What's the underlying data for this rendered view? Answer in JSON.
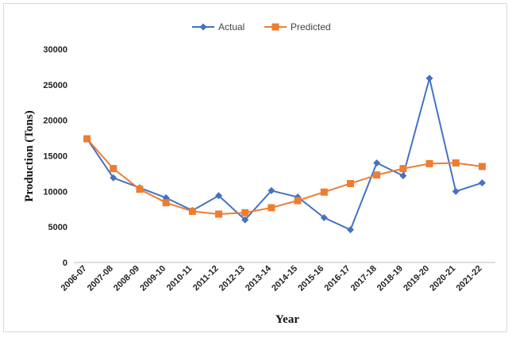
{
  "chart_data": {
    "type": "line",
    "title": "",
    "xlabel": "Year",
    "ylabel": "Production (Tons)",
    "ylim": [
      0,
      30000
    ],
    "yticks": [
      "0",
      "5000",
      "10000",
      "15000",
      "20000",
      "25000",
      "30000"
    ],
    "grid": false,
    "legend_position": "top",
    "categories": [
      "2006-07",
      "2007-08",
      "2008-09",
      "2009-10",
      "2010-11",
      "2011-12",
      "2012-13",
      "2013-14",
      "2014-15",
      "2015-16",
      "2016-17",
      "2017-18",
      "2018-19",
      "2019-20",
      "2020-21",
      "2021-22"
    ],
    "series": [
      {
        "name": "Actual",
        "color": "#4472c4",
        "marker": "diamond",
        "values": [
          17400,
          11900,
          10500,
          9100,
          7300,
          9400,
          6000,
          10100,
          9200,
          6300,
          4600,
          14000,
          12200,
          25900,
          10000,
          11200
        ]
      },
      {
        "name": "Predicted",
        "color": "#ed7d31",
        "marker": "square",
        "values": [
          17400,
          13200,
          10300,
          8400,
          7200,
          6800,
          7000,
          7700,
          8700,
          9900,
          11100,
          12300,
          13200,
          13900,
          14000,
          13500
        ]
      }
    ]
  }
}
